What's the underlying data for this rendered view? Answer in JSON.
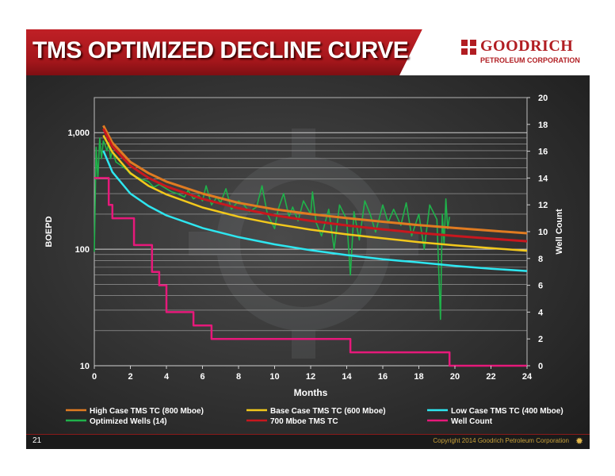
{
  "slide": {
    "title": "TMS OPTIMIZED DECLINE CURVE",
    "logo_top": "GOODRICH",
    "logo_bottom": "PETROLEUM CORPORATION",
    "page_number": "21",
    "copyright": "Copyright 2014 Goodrich Petroleum Corporation"
  },
  "colors": {
    "high": "#e07b21",
    "base": "#f2c81c",
    "low": "#2ee6f0",
    "optimized": "#1fb24a",
    "tc700": "#c8171e",
    "wellcount": "#e6197a"
  },
  "chart_data": {
    "type": "line",
    "xlabel": "Months",
    "ylabel": "BOEPD",
    "y2label": "Well Count",
    "xlim": [
      0,
      24
    ],
    "x_ticks": [
      0,
      2,
      4,
      6,
      8,
      10,
      12,
      14,
      16,
      18,
      20,
      22,
      24
    ],
    "ylim_log": [
      10,
      2000
    ],
    "y_ticks": [
      {
        "value": 10,
        "label": "10"
      },
      {
        "value": 100,
        "label": "100"
      },
      {
        "value": 1000,
        "label": "1,000"
      }
    ],
    "y2lim": [
      0,
      20
    ],
    "y2_ticks": [
      0,
      2,
      4,
      6,
      8,
      10,
      12,
      14,
      16,
      18,
      20
    ],
    "legend": {
      "high": "High Case TMS TC (800 Mboe)",
      "base": "Base Case TMS TC (600 Mboe)",
      "low": "Low Case TMS TC (400 Mboe)",
      "optimized": "Optimized Wells (14)",
      "tc700": "700 Mboe TMS TC",
      "wellcount": "Well Count"
    },
    "series": [
      {
        "name": "High Case TMS TC (800 Mboe)",
        "key": "high",
        "axis": "left",
        "x": [
          0.5,
          1,
          2,
          3,
          4,
          6,
          8,
          10,
          12,
          14,
          16,
          18,
          20,
          22,
          24
        ],
        "y": [
          1150,
          820,
          560,
          450,
          380,
          300,
          250,
          220,
          200,
          185,
          172,
          161,
          152,
          144,
          137
        ]
      },
      {
        "name": "700 Mboe TMS TC",
        "key": "tc700",
        "axis": "left",
        "x": [
          0.5,
          1,
          2,
          3,
          4,
          6,
          8,
          10,
          12,
          14,
          16,
          18,
          20,
          22,
          24
        ],
        "y": [
          1080,
          760,
          520,
          410,
          345,
          270,
          225,
          195,
          175,
          160,
          148,
          138,
          130,
          123,
          117
        ]
      },
      {
        "name": "Base Case TMS TC (600 Mboe)",
        "key": "base",
        "axis": "left",
        "x": [
          0.5,
          1,
          2,
          3,
          4,
          6,
          8,
          10,
          12,
          14,
          16,
          18,
          20,
          22,
          24
        ],
        "y": [
          950,
          680,
          450,
          350,
          295,
          228,
          190,
          165,
          147,
          134,
          124,
          115,
          108,
          102,
          97
        ]
      },
      {
        "name": "Low Case TMS TC (400 Mboe)",
        "key": "low",
        "axis": "left",
        "x": [
          0.5,
          1,
          2,
          3,
          4,
          6,
          8,
          10,
          12,
          14,
          16,
          18,
          20,
          22,
          24
        ],
        "y": [
          700,
          460,
          300,
          235,
          195,
          152,
          127,
          110,
          98,
          89,
          82,
          77,
          72,
          68,
          65
        ]
      },
      {
        "name": "Optimized Wells (14)",
        "key": "optimized",
        "axis": "left",
        "x": [
          0.0,
          0.1,
          0.2,
          0.3,
          0.4,
          0.5,
          0.6,
          0.7,
          0.8,
          0.9,
          1.0,
          1.2,
          1.5,
          1.8,
          2.0,
          2.3,
          2.6,
          3.0,
          3.3,
          3.6,
          4.0,
          4.3,
          4.6,
          5.0,
          5.2,
          5.5,
          5.8,
          6.0,
          6.2,
          6.5,
          6.8,
          7.0,
          7.3,
          7.6,
          8.0,
          8.3,
          8.6,
          9.0,
          9.3,
          9.6,
          10.0,
          10.2,
          10.5,
          10.8,
          11.0,
          11.3,
          11.6,
          12.0,
          12.1,
          12.3,
          12.6,
          13.0,
          13.3,
          13.6,
          14.0,
          14.2,
          14.4,
          14.7,
          15.0,
          15.3,
          15.6,
          16.0,
          16.3,
          16.6,
          17.0,
          17.3,
          17.6,
          18.0,
          18.3,
          18.6,
          19.0,
          19.2,
          19.3,
          19.4,
          19.5,
          19.6,
          19.7
        ],
        "y": [
          95,
          750,
          400,
          900,
          600,
          850,
          780,
          700,
          820,
          600,
          700,
          560,
          520,
          480,
          440,
          420,
          400,
          380,
          340,
          360,
          330,
          310,
          300,
          280,
          320,
          270,
          290,
          260,
          350,
          240,
          280,
          250,
          330,
          220,
          260,
          240,
          210,
          230,
          350,
          200,
          150,
          220,
          300,
          190,
          230,
          175,
          260,
          200,
          310,
          170,
          130,
          220,
          100,
          240,
          180,
          60,
          210,
          120,
          260,
          200,
          140,
          240,
          170,
          220,
          160,
          250,
          130,
          200,
          100,
          240,
          180,
          25,
          200,
          110,
          270,
          150,
          190
        ]
      },
      {
        "name": "Well Count",
        "key": "wellcount",
        "axis": "right",
        "step": true,
        "x": [
          0,
          0.8,
          1.0,
          1.4,
          2.2,
          3.2,
          3.6,
          4.0,
          5.5,
          6.5,
          14.2,
          19.7,
          24
        ],
        "y": [
          14,
          12,
          11,
          11,
          9,
          7,
          6,
          4,
          3,
          2,
          1,
          0,
          0
        ]
      }
    ]
  }
}
